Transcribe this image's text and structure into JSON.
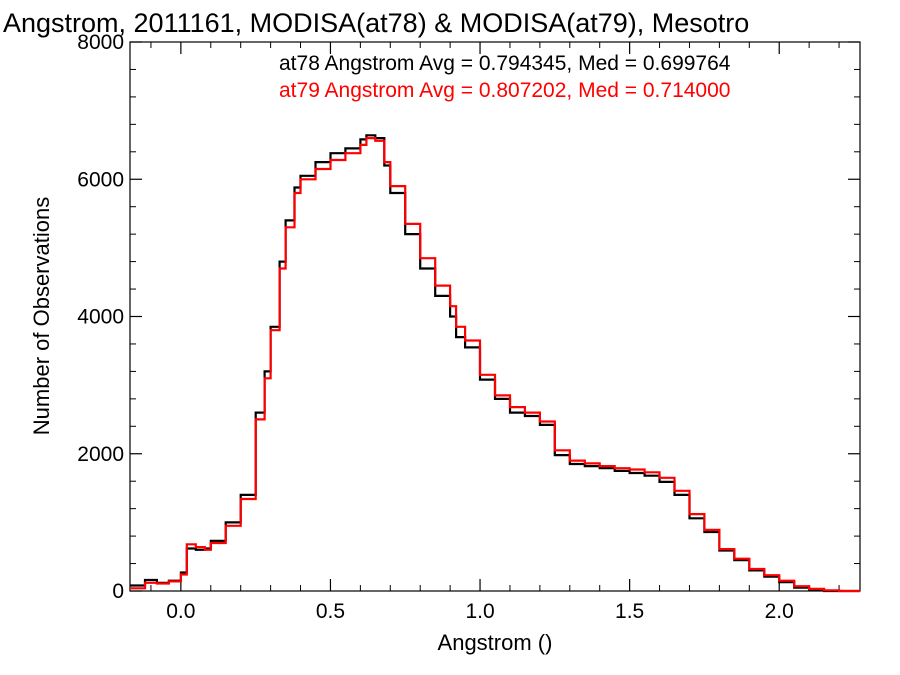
{
  "chart_data": {
    "type": "line",
    "title": "Angstrom, 2011161, MODISA(at78) & MODISA(at79), Mesotro",
    "xlabel": "Angstrom ()",
    "ylabel": "Number of Observations",
    "xlim": [
      -0.17,
      2.27
    ],
    "ylim": [
      0,
      8000
    ],
    "x_ticks": [
      0.0,
      0.5,
      1.0,
      1.5,
      2.0
    ],
    "x_tick_labels": [
      "0.0",
      "0.5",
      "1.0",
      "1.5",
      "2.0"
    ],
    "y_ticks": [
      0,
      2000,
      4000,
      6000,
      8000
    ],
    "y_tick_labels": [
      "0",
      "2000",
      "4000",
      "6000",
      "8000"
    ],
    "grid": false,
    "legend_position": "top-right",
    "series": [
      {
        "name": "at78 Angstrom Avg = 0.794345, Med = 0.699764",
        "color": "#000000",
        "x": [
          -0.17,
          -0.12,
          -0.08,
          -0.04,
          0.0,
          0.02,
          0.05,
          0.08,
          0.1,
          0.15,
          0.2,
          0.25,
          0.28,
          0.3,
          0.33,
          0.35,
          0.38,
          0.4,
          0.45,
          0.5,
          0.55,
          0.6,
          0.62,
          0.65,
          0.68,
          0.7,
          0.75,
          0.8,
          0.85,
          0.9,
          0.92,
          0.95,
          1.0,
          1.05,
          1.1,
          1.15,
          1.2,
          1.25,
          1.3,
          1.35,
          1.4,
          1.45,
          1.5,
          1.55,
          1.6,
          1.65,
          1.7,
          1.75,
          1.8,
          1.85,
          1.9,
          1.95,
          2.0,
          2.05,
          2.1,
          2.15,
          2.2,
          2.27
        ],
        "y": [
          80,
          160,
          120,
          150,
          270,
          620,
          600,
          620,
          730,
          1000,
          1400,
          2600,
          3200,
          3850,
          4800,
          5400,
          5880,
          6050,
          6250,
          6380,
          6450,
          6580,
          6640,
          6600,
          6200,
          5800,
          5200,
          4700,
          4300,
          4000,
          3700,
          3550,
          3080,
          2800,
          2600,
          2550,
          2420,
          1980,
          1850,
          1820,
          1790,
          1750,
          1720,
          1680,
          1590,
          1400,
          1060,
          860,
          590,
          450,
          300,
          210,
          130,
          50,
          10,
          0,
          0,
          0
        ]
      },
      {
        "name": "at79 Angstrom Avg = 0.807202, Med = 0.714000",
        "color": "#ff0000",
        "x": [
          -0.17,
          -0.12,
          -0.08,
          -0.04,
          0.0,
          0.02,
          0.05,
          0.08,
          0.1,
          0.15,
          0.2,
          0.25,
          0.28,
          0.3,
          0.33,
          0.35,
          0.38,
          0.4,
          0.45,
          0.5,
          0.55,
          0.6,
          0.62,
          0.65,
          0.68,
          0.7,
          0.75,
          0.8,
          0.85,
          0.9,
          0.92,
          0.95,
          1.0,
          1.05,
          1.1,
          1.15,
          1.2,
          1.25,
          1.3,
          1.35,
          1.4,
          1.45,
          1.5,
          1.55,
          1.6,
          1.65,
          1.7,
          1.75,
          1.8,
          1.85,
          1.9,
          1.95,
          2.0,
          2.05,
          2.1,
          2.15,
          2.2,
          2.27
        ],
        "y": [
          40,
          120,
          110,
          140,
          240,
          680,
          640,
          600,
          700,
          950,
          1340,
          2500,
          3100,
          3800,
          4700,
          5300,
          5800,
          6000,
          6150,
          6280,
          6380,
          6500,
          6600,
          6560,
          6250,
          5900,
          5350,
          4850,
          4450,
          4150,
          3850,
          3650,
          3150,
          2850,
          2680,
          2600,
          2470,
          2050,
          1900,
          1860,
          1820,
          1790,
          1770,
          1730,
          1650,
          1460,
          1120,
          890,
          610,
          470,
          320,
          230,
          150,
          70,
          30,
          10,
          0,
          0
        ]
      }
    ]
  }
}
